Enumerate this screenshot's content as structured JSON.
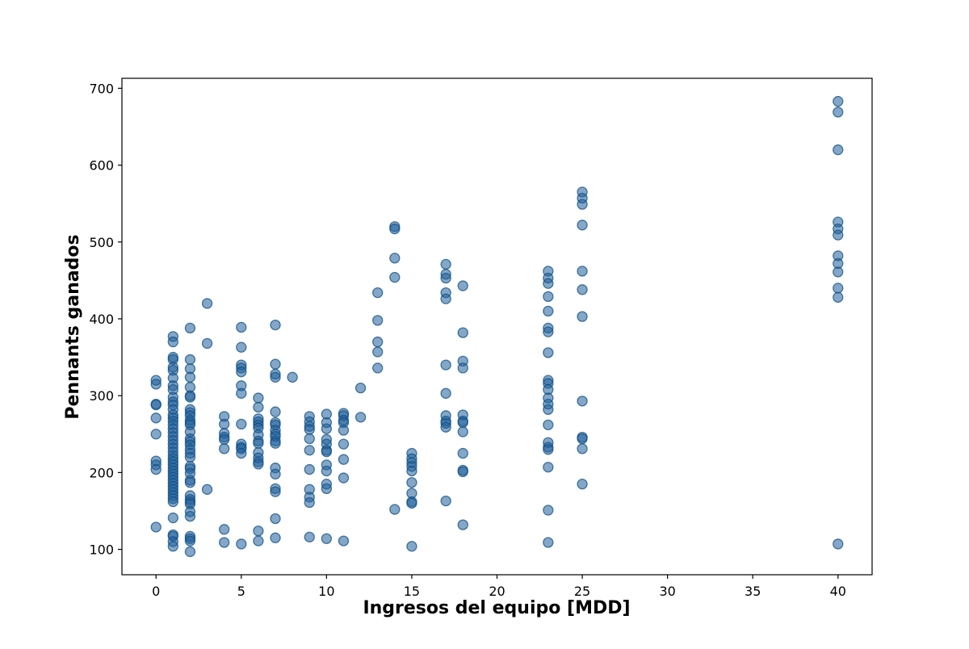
{
  "chart_data": {
    "type": "scatter",
    "title": "",
    "xlabel": "Ingresos del equipo [MDD]",
    "ylabel": "Pennants ganados",
    "xlim": [
      -2,
      42
    ],
    "ylim": [
      67,
      713
    ],
    "xticks": [
      0,
      5,
      10,
      15,
      20,
      25,
      30,
      35,
      40
    ],
    "yticks": [
      100,
      200,
      300,
      400,
      500,
      600,
      700
    ],
    "grid": false,
    "legend": "none",
    "color": "#1f5f99",
    "edge_color": "#0f4f86",
    "series": [
      {
        "points": [
          [
            0,
            320
          ],
          [
            0,
            315
          ],
          [
            0,
            289
          ],
          [
            0,
            288
          ],
          [
            0,
            271
          ],
          [
            0,
            250
          ],
          [
            0,
            215
          ],
          [
            0,
            210
          ],
          [
            0,
            204
          ],
          [
            0,
            129
          ],
          [
            1,
            377
          ],
          [
            1,
            370
          ],
          [
            1,
            350
          ],
          [
            1,
            347
          ],
          [
            1,
            337
          ],
          [
            1,
            333
          ],
          [
            1,
            323
          ],
          [
            1,
            313
          ],
          [
            1,
            308
          ],
          [
            1,
            298
          ],
          [
            1,
            292
          ],
          [
            1,
            288
          ],
          [
            1,
            282
          ],
          [
            1,
            275
          ],
          [
            1,
            271
          ],
          [
            1,
            267
          ],
          [
            1,
            262
          ],
          [
            1,
            257
          ],
          [
            1,
            252
          ],
          [
            1,
            247
          ],
          [
            1,
            242
          ],
          [
            1,
            237
          ],
          [
            1,
            232
          ],
          [
            1,
            227
          ],
          [
            1,
            222
          ],
          [
            1,
            218
          ],
          [
            1,
            214
          ],
          [
            1,
            210
          ],
          [
            1,
            206
          ],
          [
            1,
            202
          ],
          [
            1,
            198
          ],
          [
            1,
            194
          ],
          [
            1,
            190
          ],
          [
            1,
            186
          ],
          [
            1,
            182
          ],
          [
            1,
            178
          ],
          [
            1,
            174
          ],
          [
            1,
            170
          ],
          [
            1,
            166
          ],
          [
            1,
            162
          ],
          [
            1,
            141
          ],
          [
            1,
            119
          ],
          [
            1,
            117
          ],
          [
            1,
            110
          ],
          [
            1,
            104
          ],
          [
            2,
            388
          ],
          [
            2,
            347
          ],
          [
            2,
            335
          ],
          [
            2,
            324
          ],
          [
            2,
            311
          ],
          [
            2,
            300
          ],
          [
            2,
            298
          ],
          [
            2,
            282
          ],
          [
            2,
            278
          ],
          [
            2,
            274
          ],
          [
            2,
            268
          ],
          [
            2,
            265
          ],
          [
            2,
            262
          ],
          [
            2,
            253
          ],
          [
            2,
            244
          ],
          [
            2,
            240
          ],
          [
            2,
            236
          ],
          [
            2,
            230
          ],
          [
            2,
            225
          ],
          [
            2,
            220
          ],
          [
            2,
            208
          ],
          [
            2,
            205
          ],
          [
            2,
            199
          ],
          [
            2,
            190
          ],
          [
            2,
            187
          ],
          [
            2,
            170
          ],
          [
            2,
            165
          ],
          [
            2,
            162
          ],
          [
            2,
            159
          ],
          [
            2,
            149
          ],
          [
            2,
            143
          ],
          [
            2,
            117
          ],
          [
            2,
            114
          ],
          [
            2,
            111
          ],
          [
            2,
            97
          ],
          [
            3,
            420
          ],
          [
            3,
            368
          ],
          [
            3,
            178
          ],
          [
            4,
            273
          ],
          [
            4,
            263
          ],
          [
            4,
            251
          ],
          [
            4,
            246
          ],
          [
            4,
            243
          ],
          [
            4,
            231
          ],
          [
            4,
            126
          ],
          [
            4,
            109
          ],
          [
            5,
            389
          ],
          [
            5,
            363
          ],
          [
            5,
            340
          ],
          [
            5,
            336
          ],
          [
            5,
            331
          ],
          [
            5,
            313
          ],
          [
            5,
            303
          ],
          [
            5,
            263
          ],
          [
            5,
            237
          ],
          [
            5,
            233
          ],
          [
            5,
            231
          ],
          [
            5,
            225
          ],
          [
            5,
            107
          ],
          [
            6,
            297
          ],
          [
            6,
            285
          ],
          [
            6,
            270
          ],
          [
            6,
            266
          ],
          [
            6,
            262
          ],
          [
            6,
            258
          ],
          [
            6,
            249
          ],
          [
            6,
            241
          ],
          [
            6,
            238
          ],
          [
            6,
            226
          ],
          [
            6,
            219
          ],
          [
            6,
            214
          ],
          [
            6,
            211
          ],
          [
            6,
            124
          ],
          [
            6,
            111
          ],
          [
            7,
            392
          ],
          [
            7,
            341
          ],
          [
            7,
            328
          ],
          [
            7,
            324
          ],
          [
            7,
            279
          ],
          [
            7,
            265
          ],
          [
            7,
            262
          ],
          [
            7,
            255
          ],
          [
            7,
            250
          ],
          [
            7,
            247
          ],
          [
            7,
            241
          ],
          [
            7,
            238
          ],
          [
            7,
            206
          ],
          [
            7,
            198
          ],
          [
            7,
            179
          ],
          [
            7,
            175
          ],
          [
            7,
            140
          ],
          [
            7,
            115
          ],
          [
            8,
            324
          ],
          [
            9,
            273
          ],
          [
            9,
            266
          ],
          [
            9,
            260
          ],
          [
            9,
            256
          ],
          [
            9,
            244
          ],
          [
            9,
            229
          ],
          [
            9,
            204
          ],
          [
            9,
            178
          ],
          [
            9,
            168
          ],
          [
            9,
            161
          ],
          [
            9,
            116
          ],
          [
            10,
            276
          ],
          [
            10,
            265
          ],
          [
            10,
            257
          ],
          [
            10,
            243
          ],
          [
            10,
            237
          ],
          [
            10,
            229
          ],
          [
            10,
            227
          ],
          [
            10,
            210
          ],
          [
            10,
            202
          ],
          [
            10,
            185
          ],
          [
            10,
            179
          ],
          [
            10,
            114
          ],
          [
            11,
            277
          ],
          [
            11,
            274
          ],
          [
            11,
            268
          ],
          [
            11,
            265
          ],
          [
            11,
            255
          ],
          [
            11,
            237
          ],
          [
            11,
            217
          ],
          [
            11,
            193
          ],
          [
            11,
            111
          ],
          [
            12,
            310
          ],
          [
            12,
            272
          ],
          [
            13,
            434
          ],
          [
            13,
            398
          ],
          [
            13,
            370
          ],
          [
            13,
            357
          ],
          [
            13,
            336
          ],
          [
            14,
            520
          ],
          [
            14,
            517
          ],
          [
            14,
            479
          ],
          [
            14,
            454
          ],
          [
            14,
            152
          ],
          [
            15,
            225
          ],
          [
            15,
            218
          ],
          [
            15,
            213
          ],
          [
            15,
            208
          ],
          [
            15,
            202
          ],
          [
            15,
            187
          ],
          [
            15,
            173
          ],
          [
            15,
            162
          ],
          [
            15,
            160
          ],
          [
            15,
            104
          ],
          [
            17,
            471
          ],
          [
            17,
            458
          ],
          [
            17,
            453
          ],
          [
            17,
            434
          ],
          [
            17,
            426
          ],
          [
            17,
            340
          ],
          [
            17,
            303
          ],
          [
            17,
            274
          ],
          [
            17,
            267
          ],
          [
            17,
            264
          ],
          [
            17,
            259
          ],
          [
            17,
            163
          ],
          [
            18,
            443
          ],
          [
            18,
            382
          ],
          [
            18,
            345
          ],
          [
            18,
            336
          ],
          [
            18,
            275
          ],
          [
            18,
            267
          ],
          [
            18,
            265
          ],
          [
            18,
            253
          ],
          [
            18,
            225
          ],
          [
            18,
            203
          ],
          [
            18,
            201
          ],
          [
            18,
            132
          ],
          [
            23,
            462
          ],
          [
            23,
            453
          ],
          [
            23,
            446
          ],
          [
            23,
            429
          ],
          [
            23,
            410
          ],
          [
            23,
            388
          ],
          [
            23,
            383
          ],
          [
            23,
            356
          ],
          [
            23,
            320
          ],
          [
            23,
            316
          ],
          [
            23,
            308
          ],
          [
            23,
            297
          ],
          [
            23,
            289
          ],
          [
            23,
            282
          ],
          [
            23,
            262
          ],
          [
            23,
            239
          ],
          [
            23,
            233
          ],
          [
            23,
            230
          ],
          [
            23,
            207
          ],
          [
            23,
            151
          ],
          [
            23,
            109
          ],
          [
            25,
            565
          ],
          [
            25,
            557
          ],
          [
            25,
            549
          ],
          [
            25,
            522
          ],
          [
            25,
            462
          ],
          [
            25,
            438
          ],
          [
            25,
            403
          ],
          [
            25,
            293
          ],
          [
            25,
            246
          ],
          [
            25,
            244
          ],
          [
            25,
            231
          ],
          [
            25,
            185
          ],
          [
            40,
            683
          ],
          [
            40,
            669
          ],
          [
            40,
            620
          ],
          [
            40,
            526
          ],
          [
            40,
            517
          ],
          [
            40,
            509
          ],
          [
            40,
            482
          ],
          [
            40,
            472
          ],
          [
            40,
            461
          ],
          [
            40,
            440
          ],
          [
            40,
            428
          ],
          [
            40,
            107
          ]
        ]
      }
    ]
  }
}
